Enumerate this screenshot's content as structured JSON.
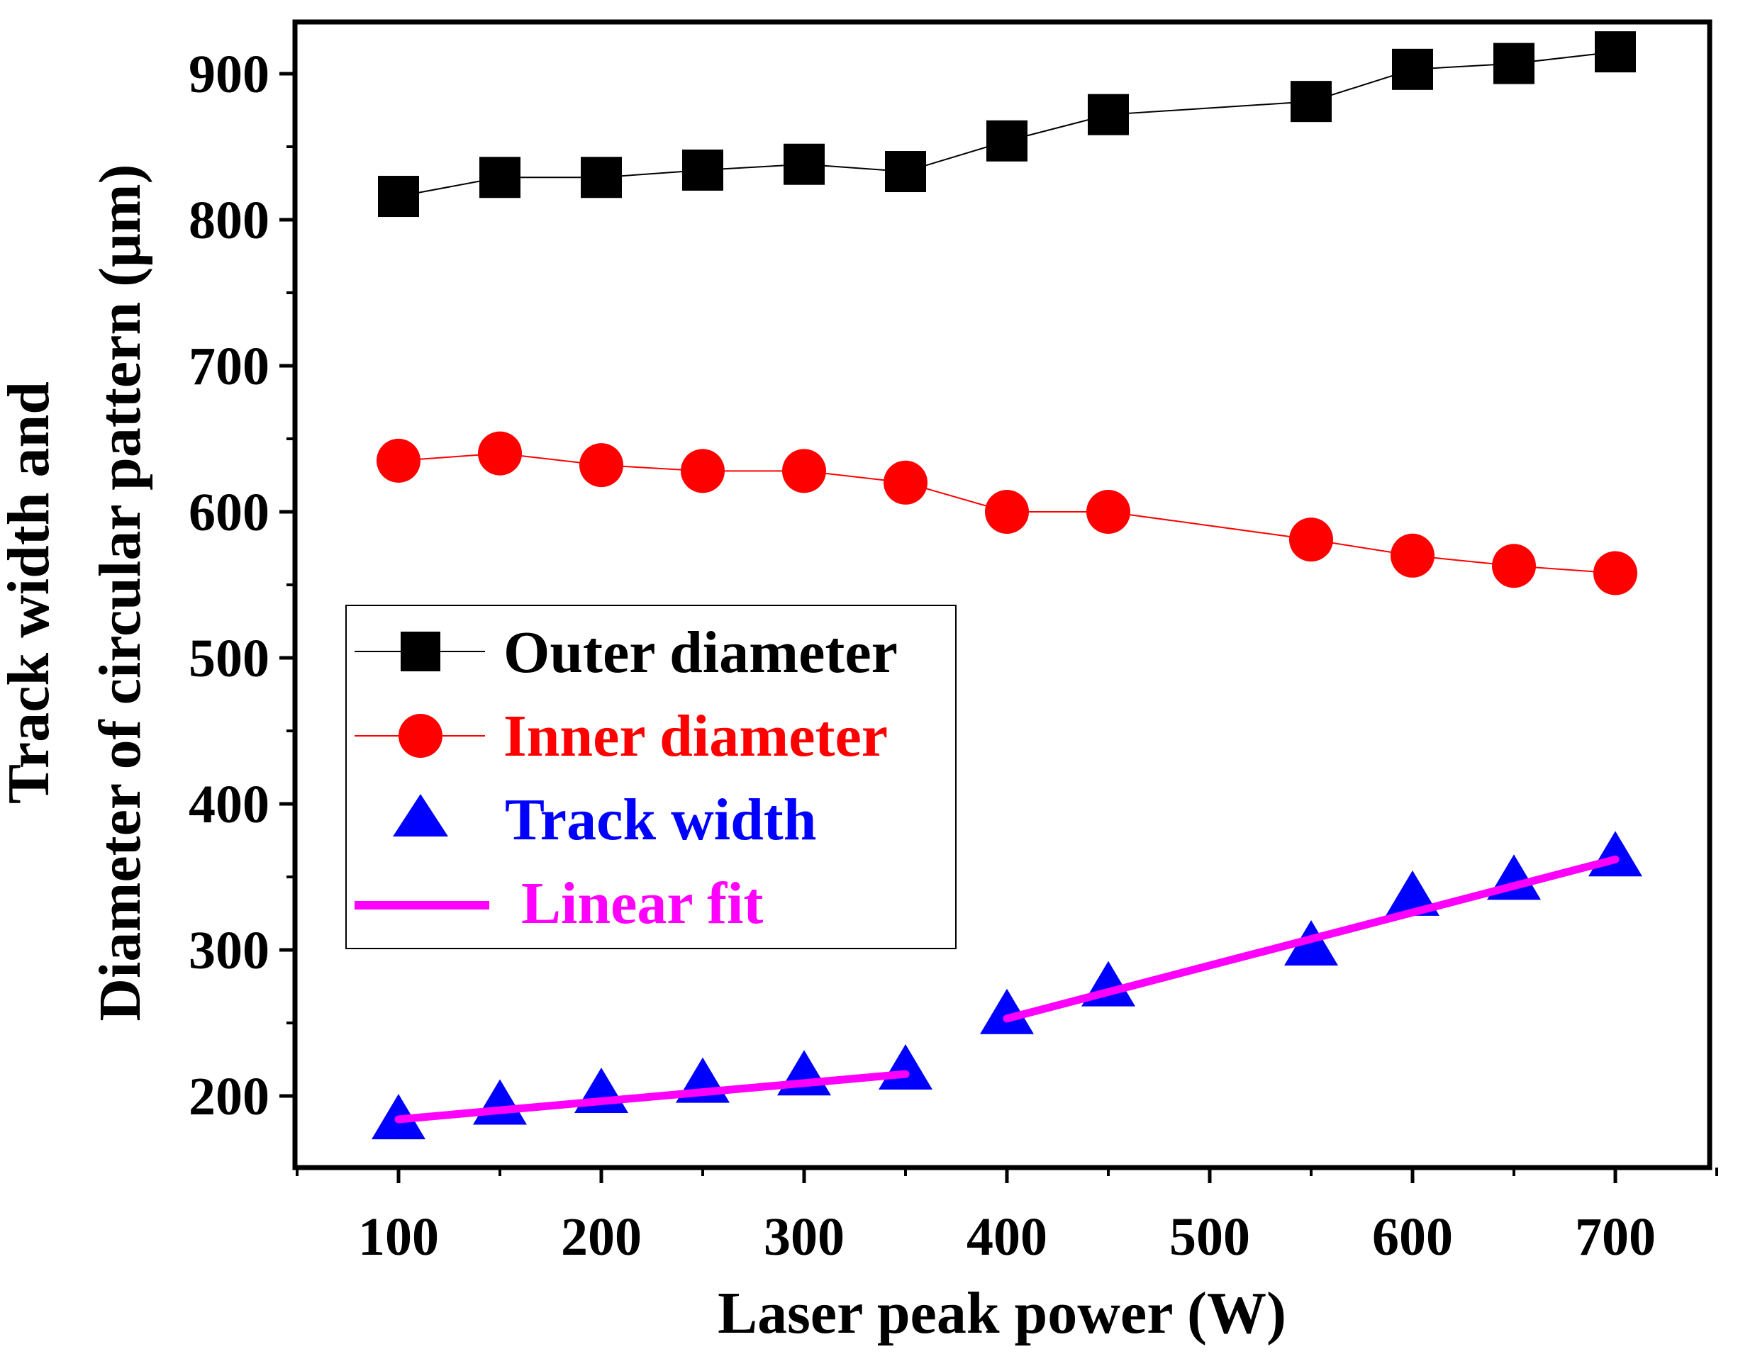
{
  "chart_data": {
    "type": "scatter",
    "title": "",
    "xlabel": "Laser peak power (W)",
    "ylabel_lines": [
      "Track width and",
      "Diameter of circular pattern (μm)"
    ],
    "xlim": [
      50,
      750
    ],
    "ylim": [
      150,
      930
    ],
    "xticks": [
      100,
      200,
      300,
      400,
      500,
      600,
      700
    ],
    "xtick_labels": [
      "100",
      "200",
      "300",
      "400",
      "500",
      "600",
      "700"
    ],
    "yticks": [
      200,
      300,
      400,
      500,
      600,
      700,
      800,
      900
    ],
    "ytick_labels": [
      "200",
      "300",
      "400",
      "500",
      "600",
      "700",
      "800",
      "900"
    ],
    "grid": false,
    "legend_position": "middle-left",
    "series": [
      {
        "name": "Outer diameter",
        "marker": "square",
        "color": "#000000",
        "line": true,
        "x": [
          100,
          150,
          200,
          250,
          300,
          350,
          400,
          450,
          550,
          600,
          650,
          700
        ],
        "y": [
          816,
          829,
          829,
          834,
          838,
          833,
          854,
          872,
          881,
          903,
          907,
          915
        ]
      },
      {
        "name": "Inner diameter",
        "marker": "circle",
        "color": "#ff0000",
        "line": true,
        "x": [
          100,
          150,
          200,
          250,
          300,
          350,
          400,
          450,
          550,
          600,
          650,
          700
        ],
        "y": [
          635,
          640,
          632,
          628,
          628,
          620,
          600,
          600,
          581,
          570,
          563,
          558
        ]
      },
      {
        "name": "Track width",
        "marker": "triangle",
        "color": "#0000ff",
        "line": false,
        "x": [
          100,
          150,
          200,
          250,
          300,
          350,
          400,
          450,
          550,
          600,
          650,
          700
        ],
        "y": [
          182,
          192,
          200,
          207,
          212,
          216,
          254,
          273,
          301,
          335,
          346,
          362
        ]
      }
    ],
    "fits": [
      {
        "name": "Linear fit",
        "color": "#ff00ff",
        "segments": [
          {
            "x": [
              100,
              350
            ],
            "y": [
              184,
              215
            ]
          },
          {
            "x": [
              400,
              700
            ],
            "y": [
              253,
              362
            ]
          }
        ]
      }
    ]
  }
}
